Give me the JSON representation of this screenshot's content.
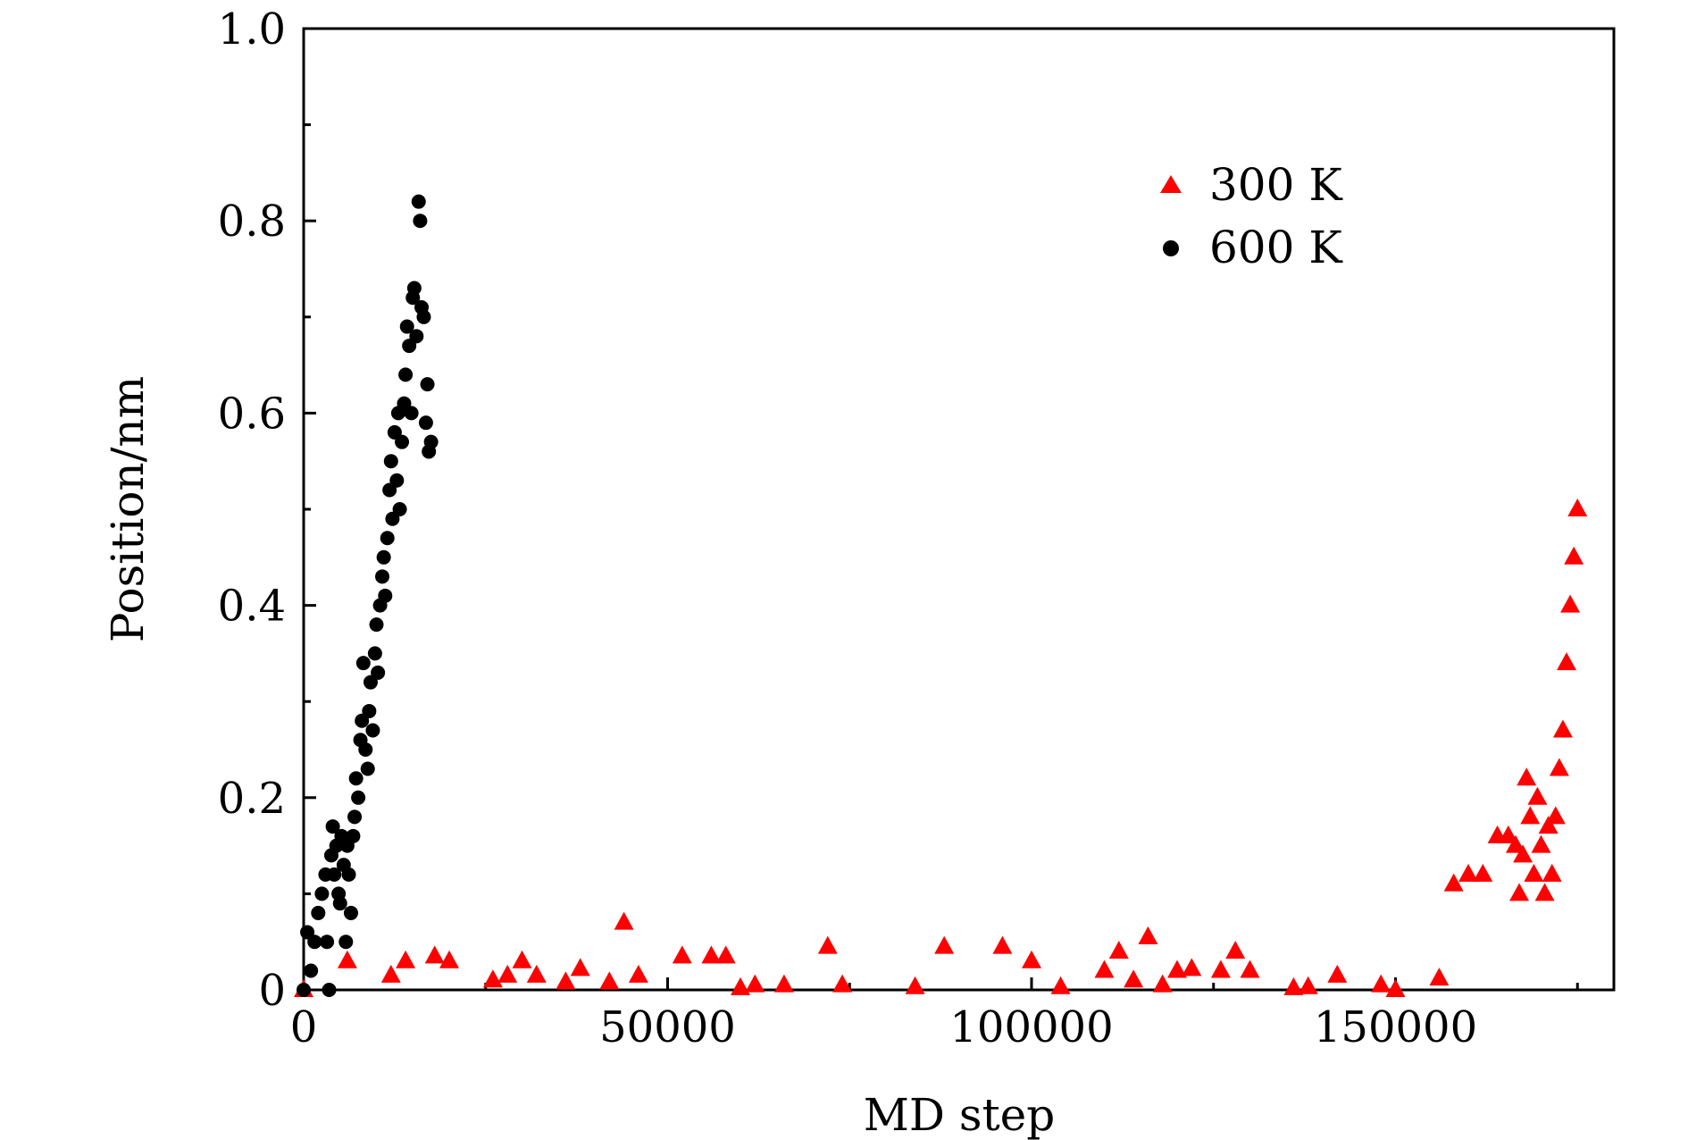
{
  "chart_data": {
    "type": "scatter",
    "title": "",
    "xlabel": "MD step",
    "ylabel": "Position/nm",
    "xlim": [
      0,
      180000
    ],
    "ylim": [
      0,
      1.0
    ],
    "x_ticks": [
      0,
      50000,
      100000,
      150000
    ],
    "x_tick_labels": [
      "0",
      "50000",
      "100000",
      "150000"
    ],
    "y_ticks": [
      0,
      0.2,
      0.4,
      0.6,
      0.8,
      1.0
    ],
    "y_tick_labels": [
      "0",
      "0.2",
      "0.4",
      "0.6",
      "0.8",
      "1.0"
    ],
    "grid": false,
    "legend_position": "top-right",
    "series": [
      {
        "name": "300 K",
        "marker": "triangle",
        "color": "#ff0000",
        "x": [
          0,
          6000,
          12000,
          14000,
          18000,
          20000,
          26000,
          28000,
          30000,
          32000,
          36000,
          38000,
          42000,
          44000,
          46000,
          52000,
          56000,
          58000,
          60000,
          62000,
          66000,
          72000,
          74000,
          84000,
          88000,
          96000,
          100000,
          104000,
          110000,
          112000,
          114000,
          116000,
          118000,
          120000,
          122000,
          126000,
          128000,
          130000,
          136000,
          138000,
          142000,
          148000,
          150000,
          156000,
          158000,
          160000,
          162000,
          164000,
          165500,
          166500,
          167000,
          167500,
          168000,
          168500,
          169000,
          169500,
          170000,
          170500,
          171000,
          171500,
          172000,
          172500,
          173000,
          173500,
          174000,
          174500,
          175000
        ],
        "y": [
          0.0,
          0.03,
          0.015,
          0.03,
          0.035,
          0.03,
          0.01,
          0.015,
          0.03,
          0.015,
          0.008,
          0.022,
          0.008,
          0.07,
          0.015,
          0.035,
          0.035,
          0.035,
          0.002,
          0.005,
          0.005,
          0.045,
          0.005,
          0.003,
          0.045,
          0.045,
          0.03,
          0.003,
          0.02,
          0.04,
          0.01,
          0.055,
          0.005,
          0.02,
          0.022,
          0.02,
          0.04,
          0.02,
          0.002,
          0.003,
          0.015,
          0.005,
          0.0,
          0.012,
          0.11,
          0.12,
          0.12,
          0.16,
          0.16,
          0.15,
          0.1,
          0.14,
          0.22,
          0.18,
          0.12,
          0.2,
          0.15,
          0.1,
          0.17,
          0.12,
          0.18,
          0.23,
          0.27,
          0.34,
          0.4,
          0.45,
          0.5
        ]
      },
      {
        "name": "600 K",
        "marker": "circle",
        "color": "#000000",
        "x": [
          0,
          500,
          1000,
          1500,
          2000,
          2500,
          3000,
          3200,
          3500,
          3800,
          4000,
          4200,
          4500,
          4800,
          5000,
          5200,
          5500,
          5800,
          6000,
          6200,
          6500,
          6800,
          7000,
          7200,
          7500,
          7800,
          8000,
          8200,
          8500,
          8800,
          9000,
          9200,
          9500,
          9800,
          10000,
          10200,
          10500,
          10800,
          11000,
          11200,
          11500,
          11800,
          12000,
          12200,
          12500,
          12800,
          13000,
          13200,
          13500,
          13800,
          14000,
          14200,
          14500,
          14800,
          15000,
          15200,
          15500,
          15800,
          16000,
          16200,
          16500,
          16800,
          17000,
          17200,
          17500
        ],
        "y": [
          0.0,
          0.06,
          0.02,
          0.05,
          0.08,
          0.1,
          0.12,
          0.05,
          0.0,
          0.14,
          0.17,
          0.12,
          0.15,
          0.1,
          0.09,
          0.16,
          0.13,
          0.05,
          0.15,
          0.12,
          0.08,
          0.16,
          0.18,
          0.22,
          0.2,
          0.26,
          0.28,
          0.34,
          0.25,
          0.23,
          0.29,
          0.32,
          0.27,
          0.35,
          0.38,
          0.33,
          0.4,
          0.43,
          0.45,
          0.41,
          0.47,
          0.52,
          0.55,
          0.49,
          0.58,
          0.53,
          0.6,
          0.5,
          0.57,
          0.61,
          0.64,
          0.69,
          0.67,
          0.6,
          0.72,
          0.73,
          0.68,
          0.82,
          0.8,
          0.71,
          0.7,
          0.59,
          0.63,
          0.56,
          0.57
        ]
      }
    ]
  }
}
